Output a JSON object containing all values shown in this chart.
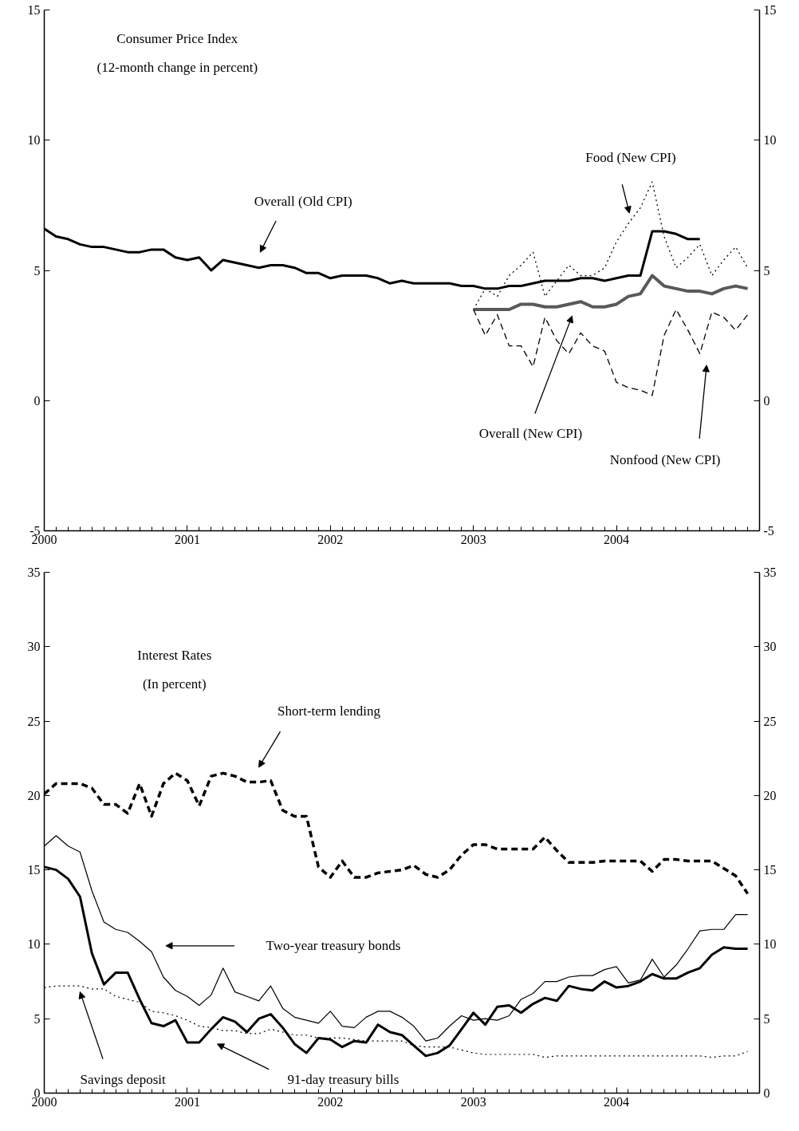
{
  "chart_data": [
    {
      "type": "line",
      "title": "Consumer Price Index\n(12-month change in percent)",
      "x": [
        2000,
        2000.083,
        2000.167,
        2000.25,
        2000.333,
        2000.417,
        2000.5,
        2000.583,
        2000.667,
        2000.75,
        2000.833,
        2000.917,
        2001,
        2001.083,
        2001.167,
        2001.25,
        2001.333,
        2001.417,
        2001.5,
        2001.583,
        2001.667,
        2001.75,
        2001.833,
        2001.917,
        2002,
        2002.083,
        2002.167,
        2002.25,
        2002.333,
        2002.417,
        2002.5,
        2002.583,
        2002.667,
        2002.75,
        2002.833,
        2002.917,
        2003,
        2003.083,
        2003.167,
        2003.25,
        2003.333,
        2003.417,
        2003.5,
        2003.583,
        2003.667,
        2003.75,
        2003.833,
        2003.917,
        2004,
        2004.083,
        2004.167,
        2004.25,
        2004.333,
        2004.417,
        2004.5,
        2004.583,
        2004.667,
        2004.75,
        2004.833,
        2004.917
      ],
      "series": [
        {
          "name": "Overall (Old CPI)",
          "color": "#000000",
          "line_style": "solid",
          "values": [
            6.6,
            6.3,
            6.2,
            6.0,
            5.9,
            5.9,
            5.8,
            5.7,
            5.7,
            5.8,
            5.8,
            5.5,
            5.4,
            5.5,
            5.0,
            5.4,
            5.3,
            5.2,
            5.1,
            5.2,
            5.2,
            5.1,
            4.9,
            4.9,
            4.7,
            4.8,
            4.8,
            4.8,
            4.7,
            4.5,
            4.6,
            4.5,
            4.5,
            4.5,
            4.5,
            4.4,
            4.4,
            4.3,
            4.3,
            4.4,
            4.4,
            4.5,
            4.6,
            4.6,
            4.6,
            4.7,
            4.7,
            4.6,
            4.7,
            4.8,
            4.8,
            6.5,
            6.5,
            6.4,
            6.2,
            6.2,
            null,
            null,
            null,
            null
          ]
        },
        {
          "name": "Food (New CPI)",
          "color": "#000000",
          "line_style": "dotted",
          "values": [
            null,
            null,
            null,
            null,
            null,
            null,
            null,
            null,
            null,
            null,
            null,
            null,
            null,
            null,
            null,
            null,
            null,
            null,
            null,
            null,
            null,
            null,
            null,
            null,
            null,
            null,
            null,
            null,
            null,
            null,
            null,
            null,
            null,
            null,
            null,
            null,
            3.5,
            4.3,
            4.0,
            4.8,
            5.2,
            5.7,
            4.0,
            4.6,
            5.2,
            4.8,
            4.8,
            5.1,
            6.1,
            6.8,
            7.4,
            8.4,
            6.3,
            5.1,
            5.5,
            6.0,
            4.8,
            5.4,
            5.9,
            5.1
          ]
        },
        {
          "name": "Overall (New CPI)",
          "color": "#595959",
          "line_style": "solid",
          "values": [
            null,
            null,
            null,
            null,
            null,
            null,
            null,
            null,
            null,
            null,
            null,
            null,
            null,
            null,
            null,
            null,
            null,
            null,
            null,
            null,
            null,
            null,
            null,
            null,
            null,
            null,
            null,
            null,
            null,
            null,
            null,
            null,
            null,
            null,
            null,
            null,
            3.5,
            3.5,
            3.5,
            3.5,
            3.7,
            3.7,
            3.6,
            3.6,
            3.7,
            3.8,
            3.6,
            3.6,
            3.7,
            4.0,
            4.1,
            4.8,
            4.4,
            4.3,
            4.2,
            4.2,
            4.1,
            4.3,
            4.4,
            4.3
          ]
        },
        {
          "name": "Nonfood (New CPI)",
          "color": "#000000",
          "line_style": "dashed",
          "values": [
            null,
            null,
            null,
            null,
            null,
            null,
            null,
            null,
            null,
            null,
            null,
            null,
            null,
            null,
            null,
            null,
            null,
            null,
            null,
            null,
            null,
            null,
            null,
            null,
            null,
            null,
            null,
            null,
            null,
            null,
            null,
            null,
            null,
            null,
            null,
            null,
            3.5,
            2.5,
            3.3,
            2.1,
            2.1,
            1.3,
            3.2,
            2.3,
            1.8,
            2.6,
            2.1,
            1.9,
            0.7,
            0.5,
            0.4,
            0.2,
            2.5,
            3.5,
            2.7,
            1.8,
            3.4,
            3.2,
            2.7,
            3.3
          ]
        }
      ],
      "xlim": [
        2000,
        2005
      ],
      "xticks": [
        2000,
        2001,
        2002,
        2003,
        2004
      ],
      "ylim": [
        -5,
        15
      ],
      "yticks": [
        -5,
        0,
        5,
        10,
        15
      ],
      "y2lim": [
        -5,
        15
      ],
      "y2ticks": [
        -5,
        0,
        5,
        10,
        15
      ]
    },
    {
      "type": "line",
      "title": "Interest Rates\n(In percent)",
      "x": [
        2000,
        2000.083,
        2000.167,
        2000.25,
        2000.333,
        2000.417,
        2000.5,
        2000.583,
        2000.667,
        2000.75,
        2000.833,
        2000.917,
        2001,
        2001.083,
        2001.167,
        2001.25,
        2001.333,
        2001.417,
        2001.5,
        2001.583,
        2001.667,
        2001.75,
        2001.833,
        2001.917,
        2002,
        2002.083,
        2002.167,
        2002.25,
        2002.333,
        2002.417,
        2002.5,
        2002.583,
        2002.667,
        2002.75,
        2002.833,
        2002.917,
        2003,
        2003.083,
        2003.167,
        2003.25,
        2003.333,
        2003.417,
        2003.5,
        2003.583,
        2003.667,
        2003.75,
        2003.833,
        2003.917,
        2004,
        2004.083,
        2004.167,
        2004.25,
        2004.333,
        2004.417,
        2004.5,
        2004.583,
        2004.667,
        2004.75,
        2004.833,
        2004.917
      ],
      "series": [
        {
          "name": "Short-term lending",
          "color": "#000000",
          "line_style": "dashed",
          "values": [
            20.1,
            20.8,
            20.8,
            20.8,
            20.5,
            19.4,
            19.4,
            18.8,
            20.8,
            18.6,
            20.8,
            21.5,
            21.0,
            19.3,
            21.3,
            21.5,
            21.3,
            20.9,
            20.9,
            21.0,
            19.0,
            18.6,
            18.6,
            15.2,
            14.5,
            15.6,
            14.5,
            14.5,
            14.8,
            14.9,
            15.0,
            15.3,
            14.7,
            14.5,
            15.0,
            16.0,
            16.7,
            16.7,
            16.4,
            16.4,
            16.4,
            16.4,
            17.2,
            16.3,
            15.5,
            15.5,
            15.5,
            15.6,
            15.6,
            15.6,
            15.6,
            14.9,
            15.7,
            15.7,
            15.6,
            15.6,
            15.6,
            15.1,
            14.6,
            13.4
          ]
        },
        {
          "name": "Two-year treasury bonds",
          "color": "#000000",
          "line_style": "solid",
          "values": [
            16.6,
            17.3,
            16.6,
            16.2,
            13.6,
            11.5,
            11.0,
            10.8,
            10.2,
            9.5,
            7.8,
            6.9,
            6.5,
            5.9,
            6.6,
            8.4,
            6.8,
            6.5,
            6.2,
            7.2,
            5.7,
            5.1,
            4.9,
            4.7,
            5.5,
            4.5,
            4.4,
            5.1,
            5.5,
            5.5,
            5.1,
            4.5,
            3.5,
            3.7,
            4.5,
            5.2,
            4.9,
            5.0,
            4.9,
            5.2,
            6.3,
            6.7,
            7.5,
            7.5,
            7.8,
            7.9,
            7.9,
            8.3,
            8.5,
            7.4,
            7.6,
            9.0,
            7.8,
            8.6,
            9.7,
            10.9,
            11.0,
            11.0,
            12.0,
            12.0
          ]
        },
        {
          "name": "91-day treasury bills",
          "color": "#000000",
          "line_style": "solid",
          "values": [
            15.2,
            15.0,
            14.4,
            13.2,
            9.4,
            7.3,
            8.1,
            8.1,
            6.3,
            4.7,
            4.5,
            4.9,
            3.4,
            3.4,
            4.3,
            5.1,
            4.8,
            4.1,
            5.0,
            5.3,
            4.4,
            3.3,
            2.7,
            3.7,
            3.6,
            3.1,
            3.5,
            3.4,
            4.6,
            4.1,
            3.9,
            3.2,
            2.5,
            2.7,
            3.2,
            4.3,
            5.4,
            4.6,
            5.8,
            5.9,
            5.4,
            6.0,
            6.4,
            6.2,
            7.2,
            7.0,
            6.9,
            7.5,
            7.1,
            7.2,
            7.5,
            8.0,
            7.7,
            7.7,
            8.1,
            8.4,
            9.3,
            9.8,
            9.7,
            9.7
          ]
        },
        {
          "name": "Savings deposit",
          "color": "#000000",
          "line_style": "dotted",
          "values": [
            7.1,
            7.2,
            7.2,
            7.2,
            7.0,
            7.0,
            6.5,
            6.3,
            6.1,
            5.5,
            5.4,
            5.2,
            4.9,
            4.5,
            4.4,
            4.2,
            4.2,
            4.0,
            4.0,
            4.3,
            4.1,
            3.9,
            3.9,
            3.7,
            3.7,
            3.7,
            3.6,
            3.5,
            3.5,
            3.5,
            3.5,
            3.2,
            3.1,
            3.1,
            3.1,
            2.9,
            2.7,
            2.6,
            2.6,
            2.6,
            2.6,
            2.6,
            2.4,
            2.5,
            2.5,
            2.5,
            2.5,
            2.5,
            2.5,
            2.5,
            2.5,
            2.5,
            2.5,
            2.5,
            2.5,
            2.5,
            2.4,
            2.5,
            2.5,
            2.8
          ]
        }
      ],
      "xlim": [
        2000,
        2005
      ],
      "xticks": [
        2000,
        2001,
        2002,
        2003,
        2004
      ],
      "ylim": [
        0,
        35
      ],
      "yticks": [
        0,
        5,
        10,
        15,
        20,
        25,
        30,
        35
      ],
      "y2lim": [
        0,
        35
      ],
      "y2ticks": [
        0,
        5,
        10,
        15,
        20,
        25,
        30,
        35
      ]
    }
  ]
}
